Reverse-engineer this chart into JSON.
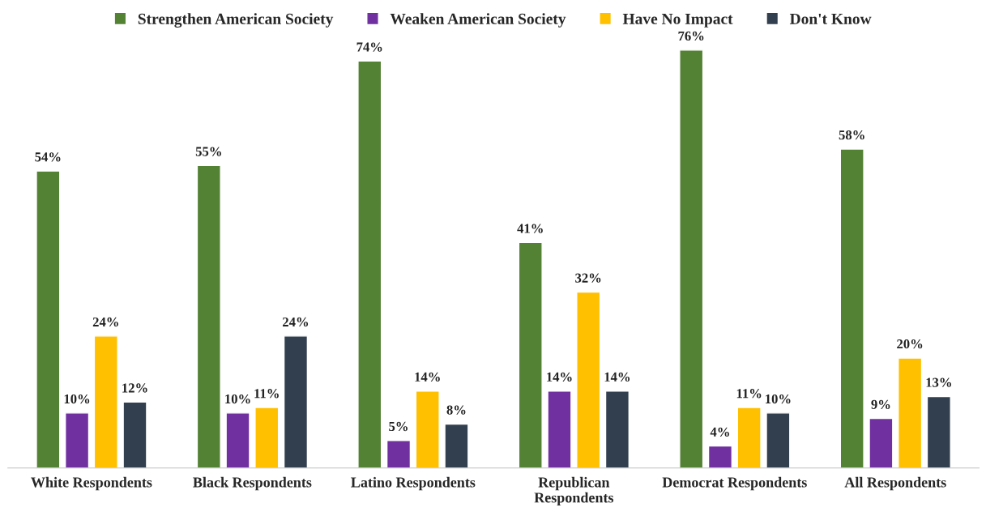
{
  "chart_data": {
    "type": "bar",
    "categories": [
      "White Respondents",
      "Black Respondents",
      "Latino Respondents",
      "Republican\nRespondents",
      "Democrat Respondents",
      "All Respondents"
    ],
    "series": [
      {
        "name": "Strengthen American Society",
        "color": "#548235",
        "values": [
          54,
          55,
          74,
          41,
          76,
          58
        ],
        "value_labels": [
          "54%",
          "55%",
          "74%",
          "41%",
          "76%",
          "58%"
        ]
      },
      {
        "name": "Weaken American Society",
        "color": "#7030a0",
        "values": [
          10,
          10,
          5,
          14,
          4,
          9
        ],
        "value_labels": [
          "10%",
          "10%",
          "5%",
          "14%",
          "4%",
          "9%"
        ]
      },
      {
        "name": "Have No Impact",
        "color": "#ffc000",
        "values": [
          24,
          11,
          14,
          32,
          11,
          20
        ],
        "value_labels": [
          "24%",
          "11%",
          "14%",
          "32%",
          "11%",
          "20%"
        ]
      },
      {
        "name": "Don't Know",
        "color": "#323f4f",
        "values": [
          12,
          24,
          8,
          14,
          10,
          13
        ],
        "value_labels": [
          "12%",
          "24%",
          "8%",
          "14%",
          "10%",
          "13%"
        ]
      }
    ],
    "legend": "top",
    "grid": false
  }
}
